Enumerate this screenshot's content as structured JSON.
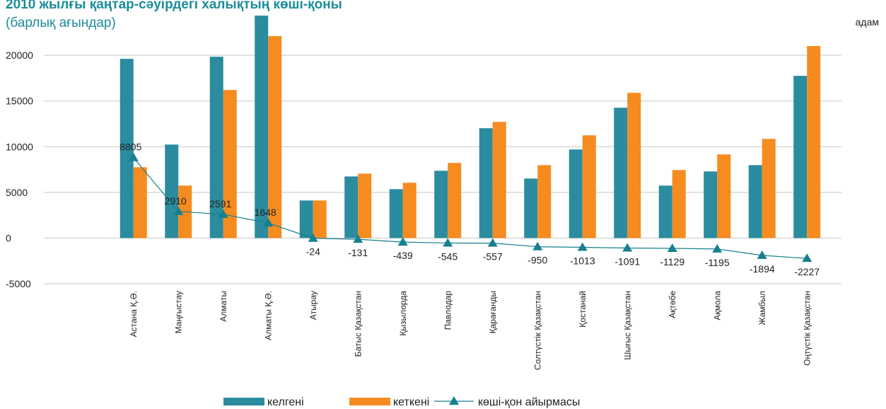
{
  "chart_data": {
    "type": "bar",
    "title": "2010 жылғы қаңтар-сәуірдегі халықтың көші-қоны",
    "subtitle": "(барлық ағындар)",
    "unit": "адам",
    "categories": [
      "Астана Қ.Ә.",
      "Маңғыстау",
      "Алматы",
      "Алматы Қ.Ә.",
      "Атырау",
      "Батыс Қазақстан",
      "Қызылорда",
      "Павлодар",
      "Қарағанды",
      "Солтүстік Қазақстан",
      "Қостанай",
      "Шығыс Қазақстан",
      "Ақтөбе",
      "Ақмола",
      "Жамбыл",
      "Оңтүстік Қазақстан"
    ],
    "series": [
      {
        "name": "келгені",
        "type": "bar",
        "color": "#2a8c9e",
        "values": [
          19610,
          10230,
          19840,
          24340,
          4110,
          6740,
          5350,
          7360,
          12020,
          6510,
          9690,
          14260,
          5740,
          7290,
          7980,
          17750
        ]
      },
      {
        "name": "кеткені",
        "type": "bar",
        "color": "#f68b1f",
        "values": [
          7750,
          5740,
          16200,
          22090,
          4110,
          7050,
          6050,
          8220,
          12710,
          7980,
          11240,
          15890,
          7440,
          9150,
          10850,
          21010
        ]
      },
      {
        "name": "көші-қон айырмасы",
        "type": "line",
        "color": "#17808f",
        "values": [
          8805,
          2910,
          2591,
          1648,
          -24,
          -131,
          -439,
          -545,
          -557,
          -950,
          -1013,
          -1091,
          -1129,
          -1195,
          -1894,
          -2227
        ]
      }
    ],
    "ylim": [
      -5000,
      24500
    ],
    "yticks": [
      -5000,
      0,
      5000,
      10000,
      15000,
      20000
    ],
    "grid": true
  }
}
